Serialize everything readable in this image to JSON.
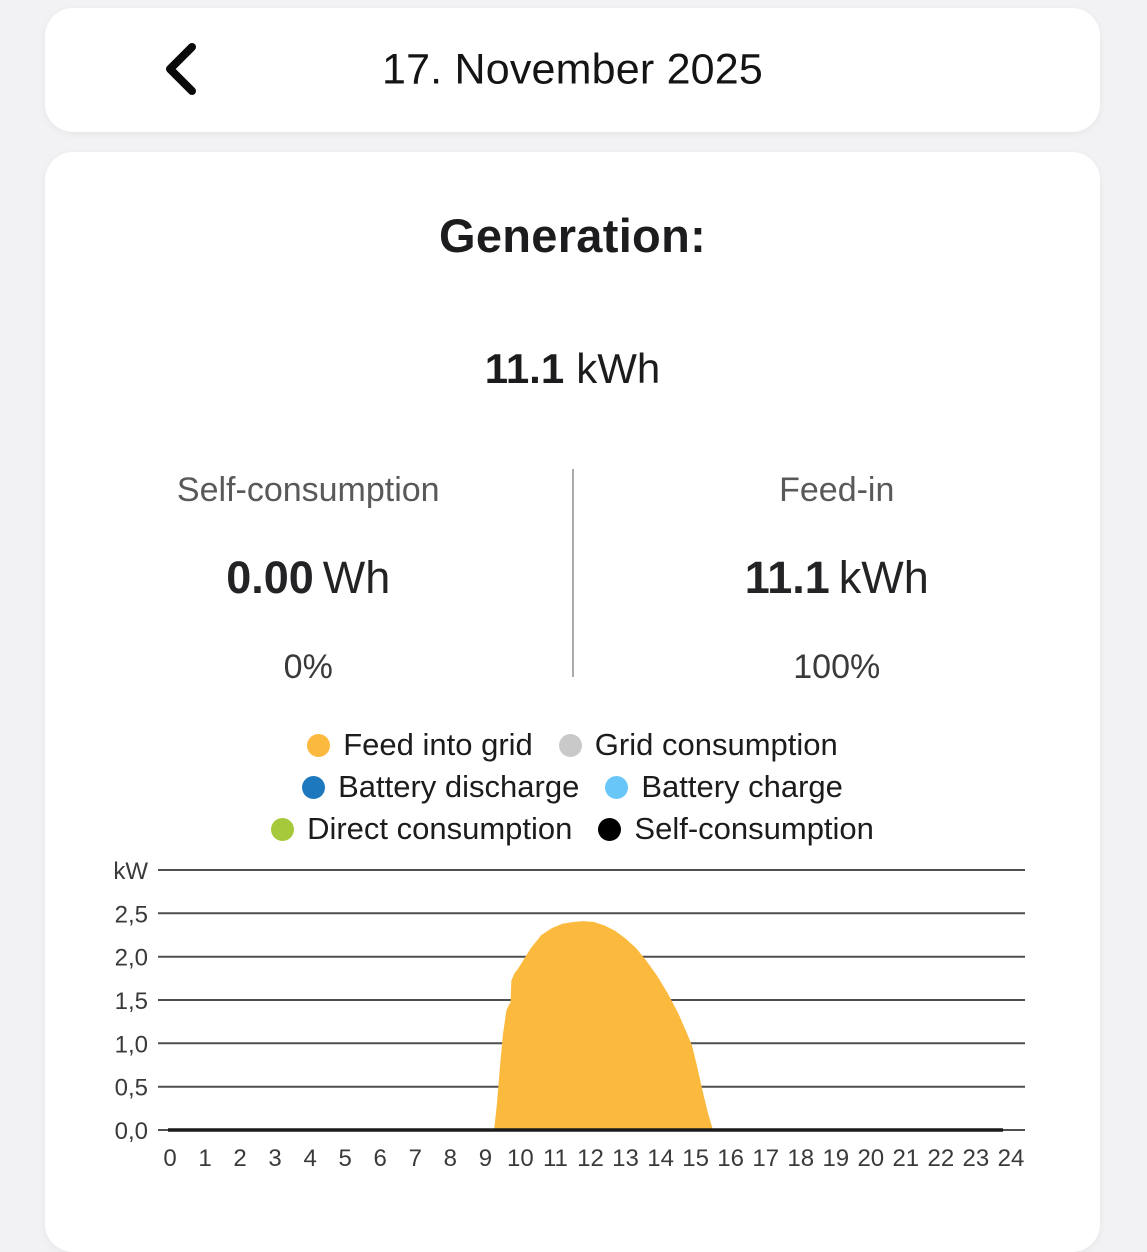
{
  "header": {
    "title": "17. November 2025"
  },
  "summary": {
    "section_title": "Generation:",
    "total_value": "11.1",
    "total_unit": "kWh",
    "self_consumption": {
      "label": "Self-consumption",
      "value": "0.00",
      "unit": "Wh",
      "percent": "0%"
    },
    "feed_in": {
      "label": "Feed-in",
      "value": "11.1",
      "unit": "kWh",
      "percent": "100%"
    }
  },
  "legend": {
    "items": [
      {
        "name": "feed-into-grid",
        "label": "Feed into grid",
        "color": "#FBBA3E"
      },
      {
        "name": "grid-consumption",
        "label": "Grid consumption",
        "color": "#C9C9C9"
      },
      {
        "name": "battery-discharge",
        "label": "Battery discharge",
        "color": "#1E78BD"
      },
      {
        "name": "battery-charge",
        "label": "Battery charge",
        "color": "#68C7F8"
      },
      {
        "name": "direct-consumption",
        "label": "Direct consumption",
        "color": "#A6C93C"
      },
      {
        "name": "self-consumption",
        "label": "Self-consumption",
        "color": "#000000"
      }
    ]
  },
  "chart_data": {
    "type": "area",
    "ylabel": "kW",
    "xlim": [
      0,
      24
    ],
    "ylim": [
      0,
      3
    ],
    "grid": true,
    "x_ticks": [
      0,
      1,
      2,
      3,
      4,
      5,
      6,
      7,
      8,
      9,
      10,
      11,
      12,
      13,
      14,
      15,
      16,
      17,
      18,
      19,
      20,
      21,
      22,
      23,
      24
    ],
    "y_gridlines": [
      {
        "value": 3.0,
        "label": "kW"
      },
      {
        "value": 2.5,
        "label": "2,5"
      },
      {
        "value": 2.0,
        "label": "2,0"
      },
      {
        "value": 1.5,
        "label": "1,5"
      },
      {
        "value": 1.0,
        "label": "1,0"
      },
      {
        "value": 0.5,
        "label": "0,5"
      },
      {
        "value": 0.0,
        "label": "0,0"
      }
    ],
    "series": [
      {
        "name": "Feed into grid",
        "color": "#FBBA3E",
        "points": [
          [
            9.25,
            0.0
          ],
          [
            9.33,
            0.3
          ],
          [
            9.42,
            0.75
          ],
          [
            9.5,
            1.1
          ],
          [
            9.6,
            1.38
          ],
          [
            9.68,
            1.45
          ],
          [
            9.72,
            1.47
          ],
          [
            9.74,
            1.72
          ],
          [
            9.82,
            1.8
          ],
          [
            9.95,
            1.87
          ],
          [
            10.1,
            1.97
          ],
          [
            10.3,
            2.1
          ],
          [
            10.6,
            2.25
          ],
          [
            10.9,
            2.33
          ],
          [
            11.2,
            2.38
          ],
          [
            11.5,
            2.4
          ],
          [
            11.8,
            2.41
          ],
          [
            12.1,
            2.4
          ],
          [
            12.4,
            2.36
          ],
          [
            12.7,
            2.3
          ],
          [
            13.0,
            2.21
          ],
          [
            13.3,
            2.1
          ],
          [
            13.6,
            1.95
          ],
          [
            13.9,
            1.78
          ],
          [
            14.2,
            1.58
          ],
          [
            14.5,
            1.35
          ],
          [
            14.75,
            1.12
          ],
          [
            14.9,
            0.97
          ],
          [
            15.05,
            0.72
          ],
          [
            15.2,
            0.45
          ],
          [
            15.35,
            0.2
          ],
          [
            15.45,
            0.06
          ],
          [
            15.5,
            0.0
          ]
        ]
      }
    ]
  }
}
